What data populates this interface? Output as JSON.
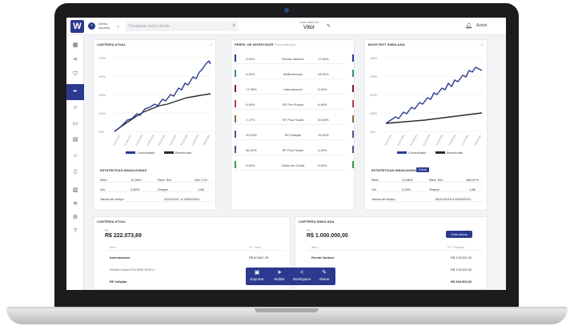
{
  "topbar": {
    "client_label": "(demo usuario)",
    "search_placeholder": "Pesquisar outro cliente",
    "viewing_label": "Você está em",
    "viewing_name": "Vitor",
    "account_label": "Assist"
  },
  "sidebar": {
    "icons": [
      "calendar-icon",
      "share-icon",
      "shield-icon",
      "pen-icon",
      "users-icon",
      "briefcase-icon",
      "chart-icon",
      "bank-icon",
      "document-icon",
      "building-icon",
      "layers-icon",
      "settings-icon",
      "help-icon"
    ]
  },
  "current_portfolio": {
    "title": "CARTEIRA ATUAL",
    "legend_portfolio": "Consolidado",
    "legend_benchmark": "Benchmark",
    "stats_title": "ESTATÍSTICAS ANUALIZADAS",
    "stats": [
      {
        "k1": "Rent.",
        "v1": "12,35%",
        "k2": "Rent. Rel.",
        "v2": "264,71%"
      },
      {
        "k1": "Vol.",
        "v1": "3,80%",
        "k2": "Sharpe",
        "v2": "1,68"
      },
      {
        "k1": "Janela de tempo",
        "v1": "",
        "k2": "",
        "v2": "02/01/2017 a 29/03/2021"
      }
    ]
  },
  "profile": {
    "title": "PERFIL DE INVESTIDOR",
    "subtitle": "Personalizado",
    "rows": [
      {
        "left": "0,00%",
        "name": "Renda Variável",
        "right": "17,50%",
        "color": "#2b3a8f"
      },
      {
        "left": "0,00%",
        "name": "Multimercado",
        "right": "28,00%",
        "color": "#3a8a8a"
      },
      {
        "left": "17,98%",
        "name": "Internacional",
        "right": "9,00%",
        "color": "#7a1f2b"
      },
      {
        "left": "0,00%",
        "name": "RF Pré-Fixado",
        "right": "6,90%",
        "color": "#c23a3a"
      },
      {
        "left": "7,27%",
        "name": "RF Pós-Fixado",
        "right": "20,55%",
        "color": "#8a6a3a"
      },
      {
        "left": "20,09%",
        "name": "RF Inflação",
        "right": "15,00%",
        "color": "#6a4a9a"
      },
      {
        "left": "36,30%",
        "name": "RF Pós-Fixado",
        "right": "3,00%",
        "color": "#5a4a8a"
      },
      {
        "left": "0,00%",
        "name": "Saldo em Conta",
        "right": "0,00%",
        "color": "#3a9a4a"
      }
    ]
  },
  "simulated_backtest": {
    "title": "BACKTEST SIMULADA",
    "legend_portfolio": "Consolidado",
    "legend_benchmark": "Benchmark",
    "stats_title": "ESTATÍSTICAS ANUALIZADAS",
    "badge": "Extrair",
    "stats": [
      {
        "k1": "Rent.",
        "v1": "13,86%",
        "k2": "Rent. Rel.",
        "v2": "486,37%"
      },
      {
        "k1": "Vol.",
        "v1": "2,24%",
        "k2": "Sharpe",
        "v2": "1,88"
      },
      {
        "k1": "Janela de tempo",
        "v1": "",
        "k2": "",
        "v2": "08/11/2019 a 29/03/2021"
      }
    ]
  },
  "current_portfolio_table": {
    "title": "CARTEIRA ATUAL",
    "pl_label": "P.L.",
    "pl_value": "R$ 222.073,69",
    "col1": "Ativo",
    "col2": "P.L. Atual",
    "rows": [
      {
        "name": "Internacional",
        "value": "R$ 40.802,78",
        "bold": true
      },
      {
        "name": "Western Asset FIA BDR NÍVEL I",
        "value": "",
        "bold": false
      },
      {
        "name": "RF Inflação",
        "value": "",
        "bold": true
      }
    ]
  },
  "simulated_portfolio_table": {
    "title": "CARTEIRA SIMULADA",
    "pl_label": "P.L.",
    "pl_value": "R$ 1.000.000,00",
    "info_button": "+Info ativos",
    "col1": "Ativo",
    "col2": "P.L. Simulado",
    "rows": [
      {
        "name": "Renda Variável",
        "value": "R$ 175.001,00",
        "bold": true
      },
      {
        "name": "",
        "value": "R$ 175.001,00",
        "bold": false
      },
      {
        "name": "...N FIC FIM",
        "value": "R$ 175.001,00",
        "bold": false
      },
      {
        "name": "",
        "value": "R$ 284.900,00",
        "bold": true
      }
    ]
  },
  "bottom_actions": [
    {
      "label": "Exportar",
      "icon": "export-icon",
      "glyph": "▣"
    },
    {
      "label": "Mobile",
      "icon": "send-icon",
      "glyph": "➤"
    },
    {
      "label": "Workspace",
      "icon": "share-icon",
      "glyph": "<"
    },
    {
      "label": "Alterar",
      "icon": "pencil-icon",
      "glyph": "✎"
    }
  ],
  "colors": {
    "accent": "#2b3a8f",
    "benchmark": "#2a2a2e",
    "series": "#2b3a8f"
  }
}
